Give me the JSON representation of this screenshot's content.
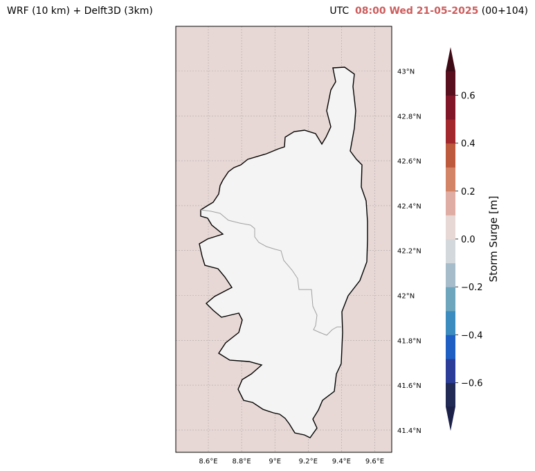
{
  "header": {
    "left_title": "WRF (10 km) + Delft3D (3km)",
    "utc_label": "UTC",
    "datetime": "08:00 Wed 21-05-2025",
    "forecast_step": "(00+104)"
  },
  "map": {
    "lon_ticks": [
      {
        "label": "8.6°E",
        "value": 8.6
      },
      {
        "label": "8.8°E",
        "value": 8.8
      },
      {
        "label": "9°E",
        "value": 9.0
      },
      {
        "label": "9.2°E",
        "value": 9.2
      },
      {
        "label": "9.4°E",
        "value": 9.4
      },
      {
        "label": "9.6°E",
        "value": 9.6
      }
    ],
    "lat_ticks": [
      {
        "label": "43°N",
        "value": 43.0
      },
      {
        "label": "42.8°N",
        "value": 42.8
      },
      {
        "label": "42.6°N",
        "value": 42.6
      },
      {
        "label": "42.4°N",
        "value": 42.4
      },
      {
        "label": "42.2°N",
        "value": 42.2
      },
      {
        "label": "42°N",
        "value": 42.0
      },
      {
        "label": "41.8°N",
        "value": 41.8
      },
      {
        "label": "41.6°N",
        "value": 41.6
      },
      {
        "label": "41.4°N",
        "value": 41.4
      }
    ],
    "sea_color": "#e8d8d5",
    "land_color": "#f4f4f4",
    "coast_color": "#000000",
    "border_color": "#a0a0a0"
  },
  "colorbar": {
    "label": "Storm Surge [m]",
    "tick_labels": [
      "0.6",
      "0.4",
      "0.2",
      "0.0",
      "−0.2",
      "−0.4",
      "−0.6"
    ],
    "tick_values": [
      0.6,
      0.4,
      0.2,
      0.0,
      -0.2,
      -0.4,
      -0.6
    ],
    "levels": [
      -0.7,
      -0.6,
      -0.5,
      -0.4,
      -0.3,
      -0.2,
      -0.1,
      0.0,
      0.1,
      0.2,
      0.3,
      0.4,
      0.5,
      0.6,
      0.7
    ],
    "colors": [
      "#222b55",
      "#2c3d99",
      "#1f5fc4",
      "#3d8cbf",
      "#6da6bd",
      "#a6bccb",
      "#d3d8dc",
      "#e8d8d5",
      "#dfada3",
      "#d38467",
      "#bd5a3d",
      "#a3282e",
      "#821629",
      "#5a0f1f"
    ],
    "under_color": "#1b2148",
    "over_color": "#3d0a15"
  }
}
